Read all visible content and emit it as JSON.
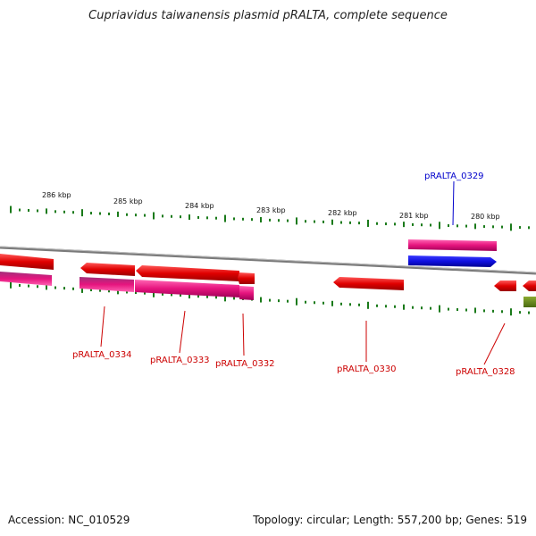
{
  "header": {
    "title": "Cupriavidus taiwanensis plasmid pRALTA, complete sequence"
  },
  "footer": {
    "accession": "Accession: NC_010529",
    "summary": "Topology: circular; Length: 557,200 bp; Genes: 519"
  },
  "scale": {
    "labels": [
      "286 kbp",
      "285 kbp",
      "284 kbp",
      "283 kbp",
      "282 kbp",
      "281 kbp",
      "280 kbp"
    ]
  },
  "colors": {
    "cds": "#e00000",
    "gene": "#e6147e",
    "highlight": "#1010e0",
    "other": "#6a8a1a",
    "tick": "#1a7a1a",
    "backbone": "#808080",
    "label_red": "#cc0000",
    "label_blue": "#0000cc"
  },
  "gene_labels": [
    {
      "id": "pRALTA_0334",
      "text": "pRALTA_0334",
      "color": "#cc0000"
    },
    {
      "id": "pRALTA_0333",
      "text": "pRALTA_0333",
      "color": "#cc0000"
    },
    {
      "id": "pRALTA_0332",
      "text": "pRALTA_0332",
      "color": "#cc0000"
    },
    {
      "id": "pRALTA_0330",
      "text": "pRALTA_0330",
      "color": "#cc0000"
    },
    {
      "id": "pRALTA_0329",
      "text": "pRALTA_0329",
      "color": "#0000cc"
    },
    {
      "id": "pRALTA_0328",
      "text": "pRALTA_0328",
      "color": "#cc0000"
    }
  ]
}
